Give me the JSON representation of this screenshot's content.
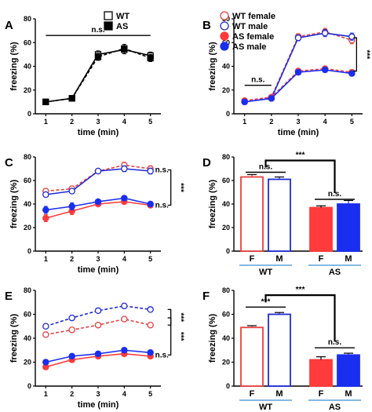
{
  "figure": {
    "colors": {
      "black": "#000000",
      "wt_red": "#e8403f",
      "wt_blue": "#1f2bd6",
      "as_red": "#ff3b3b",
      "as_blue": "#1a2ef0",
      "underline_blue": "#5aa0d8"
    }
  },
  "chart_data": [
    {
      "id": "A",
      "panel_label": "A",
      "type": "line",
      "xlabel": "time (min)",
      "ylabel": "freezing (%)",
      "x": [
        1,
        2,
        3,
        4,
        5
      ],
      "xlim": [
        0.6,
        5.4
      ],
      "ylim": [
        0,
        80
      ],
      "yticks": [
        0,
        20,
        40,
        60,
        80
      ],
      "series": [
        {
          "name": "WT",
          "marker": "square-open",
          "line": "solid",
          "color": "#000000",
          "values": [
            10,
            13,
            50,
            54,
            49
          ],
          "errors": [
            1.5,
            1.5,
            3,
            3.5,
            3
          ]
        },
        {
          "name": "AS",
          "marker": "square-filled",
          "line": "dashed",
          "color": "#000000",
          "values": [
            10,
            13,
            48,
            55,
            47
          ],
          "errors": [
            1.5,
            1.5,
            3,
            3.5,
            3
          ]
        }
      ],
      "annotations": [
        {
          "text": "n.s.",
          "kind": "bar",
          "x1": 1,
          "x2": 5,
          "y": 66
        }
      ],
      "legend": "top-right",
      "grid": false
    },
    {
      "id": "B",
      "panel_label": "B",
      "type": "line",
      "xlabel": "time (min)",
      "ylabel": "freezing (%)",
      "x": [
        1,
        2,
        3,
        4,
        5
      ],
      "xlim": [
        0.6,
        5.4
      ],
      "ylim": [
        0,
        80
      ],
      "yticks": [
        0,
        20,
        40,
        60,
        80
      ],
      "series": [
        {
          "name": "WT female",
          "marker": "circle-open",
          "line": "dashed",
          "color": "#e8403f",
          "values": [
            11,
            14,
            65,
            69,
            62
          ],
          "errors": [
            1.5,
            1.5,
            2.5,
            3,
            3
          ]
        },
        {
          "name": "WT male",
          "marker": "circle-open",
          "line": "solid",
          "color": "#1f2bd6",
          "values": [
            10,
            13,
            64,
            68,
            65
          ],
          "errors": [
            1.5,
            1.5,
            2.5,
            3,
            3
          ]
        },
        {
          "name": "AS female",
          "marker": "circle-filled",
          "line": "dashed",
          "color": "#ff3b3b",
          "values": [
            11,
            14,
            36,
            38,
            35
          ],
          "errors": [
            1.5,
            1.5,
            2,
            2,
            2
          ]
        },
        {
          "name": "AS male",
          "marker": "circle-filled",
          "line": "solid",
          "color": "#1a2ef0",
          "values": [
            10,
            13,
            35,
            37,
            34
          ],
          "errors": [
            1.5,
            1.5,
            2,
            2,
            2
          ]
        }
      ],
      "annotations": [
        {
          "text": "n.s.",
          "kind": "bar",
          "x1": 1,
          "x2": 2,
          "y": 24
        },
        {
          "text": "***",
          "kind": "bracket-right",
          "x": 5,
          "y1": 36,
          "y2": 64
        }
      ],
      "legend": "top-left",
      "grid": false
    },
    {
      "id": "C",
      "panel_label": "C",
      "type": "line",
      "xlabel": "time (min)",
      "ylabel": "freezing (%)",
      "x": [
        1,
        2,
        3,
        4,
        5
      ],
      "xlim": [
        0.6,
        5.4
      ],
      "ylim": [
        0,
        80
      ],
      "yticks": [
        0,
        20,
        40,
        60,
        80
      ],
      "series": [
        {
          "name": "WT female",
          "marker": "circle-open",
          "line": "dashed",
          "color": "#e8403f",
          "values": [
            51,
            53,
            68,
            73,
            70
          ],
          "errors": [
            2,
            2,
            2,
            2.5,
            2.5
          ]
        },
        {
          "name": "WT male",
          "marker": "circle-open",
          "line": "solid",
          "color": "#1f2bd6",
          "values": [
            48,
            51,
            68,
            70,
            68
          ],
          "errors": [
            2,
            2,
            2,
            2.5,
            2.5
          ]
        },
        {
          "name": "AS female",
          "marker": "circle-filled",
          "line": "solid",
          "color": "#ff3b3b",
          "values": [
            28,
            34,
            40,
            42,
            39
          ],
          "errors": [
            3,
            3,
            2,
            2,
            2
          ]
        },
        {
          "name": "AS male",
          "marker": "circle-filled",
          "line": "solid",
          "color": "#1a2ef0",
          "values": [
            35,
            38,
            42,
            45,
            40
          ],
          "errors": [
            3,
            3,
            2,
            2,
            2
          ]
        }
      ],
      "annotations": [
        {
          "text": "n.s.",
          "kind": "label",
          "x": 5,
          "y": 69
        },
        {
          "text": "n.s.",
          "kind": "label",
          "x": 5,
          "y": 39
        },
        {
          "text": "***",
          "kind": "bracket-right",
          "x": 5,
          "y1": 39,
          "y2": 69
        }
      ],
      "grid": false
    },
    {
      "id": "D",
      "panel_label": "D",
      "type": "bar",
      "ylabel": "freezing (%)",
      "categories": [
        "F",
        "M",
        "F",
        "M"
      ],
      "groups": [
        {
          "label": "WT"
        },
        {
          "label": "AS"
        }
      ],
      "values": [
        63,
        61,
        37,
        40
      ],
      "errors": [
        2,
        2,
        1.5,
        3
      ],
      "bar_style": [
        "open-red",
        "open-blue",
        "filled-red",
        "filled-blue"
      ],
      "ylim": [
        0,
        80
      ],
      "yticks": [
        0,
        20,
        40,
        60,
        80
      ],
      "annotations": [
        {
          "text": "n.s.",
          "kind": "bar",
          "i1": 0,
          "i2": 1,
          "y": 67
        },
        {
          "text": "n.s.",
          "kind": "bar",
          "i1": 2,
          "i2": 3,
          "y": 44
        },
        {
          "text": "***",
          "kind": "bracket-top",
          "i1": 0.5,
          "i2": 2.5,
          "y": 77
        }
      ],
      "grid": false
    },
    {
      "id": "E",
      "panel_label": "E",
      "type": "line",
      "xlabel": "time (min)",
      "ylabel": "freezing (%)",
      "x": [
        1,
        2,
        3,
        4,
        5
      ],
      "xlim": [
        0.6,
        5.4
      ],
      "ylim": [
        0,
        80
      ],
      "yticks": [
        0,
        20,
        40,
        60,
        80
      ],
      "series": [
        {
          "name": "WT female",
          "marker": "circle-open",
          "line": "dashed",
          "color": "#e8403f",
          "values": [
            43,
            47,
            51,
            56,
            51
          ],
          "errors": [
            1.5,
            1.5,
            1.5,
            1.5,
            1.5
          ]
        },
        {
          "name": "WT male",
          "marker": "circle-open",
          "line": "dashed",
          "color": "#1f2bd6",
          "values": [
            50,
            57,
            63,
            67,
            64
          ],
          "errors": [
            1.5,
            1.5,
            1.5,
            1.5,
            1.5
          ]
        },
        {
          "name": "AS female",
          "marker": "circle-filled",
          "line": "solid",
          "color": "#ff3b3b",
          "values": [
            16,
            22,
            25,
            27,
            25
          ],
          "errors": [
            2,
            2,
            2,
            2,
            2
          ]
        },
        {
          "name": "AS male",
          "marker": "circle-filled",
          "line": "solid",
          "color": "#1a2ef0",
          "values": [
            20,
            25,
            27,
            30,
            28
          ],
          "errors": [
            2,
            2,
            2,
            2,
            2
          ]
        }
      ],
      "annotations": [
        {
          "text": "***",
          "kind": "bracket-right",
          "x": 5,
          "y1": 51,
          "y2": 64
        },
        {
          "text": "n.s.",
          "kind": "label",
          "x": 5,
          "y": 26
        },
        {
          "text": "***",
          "kind": "bracket-right",
          "x": 5,
          "y1": 26,
          "y2": 57
        }
      ],
      "grid": false
    },
    {
      "id": "F",
      "panel_label": "F",
      "type": "bar",
      "ylabel": "freezing (%)",
      "categories": [
        "F",
        "M",
        "F",
        "M"
      ],
      "groups": [
        {
          "label": "WT"
        },
        {
          "label": "AS"
        }
      ],
      "values": [
        49,
        60,
        22,
        26
      ],
      "errors": [
        1.5,
        1.5,
        2.5,
        1.5
      ],
      "bar_style": [
        "open-red",
        "open-blue",
        "filled-red",
        "filled-blue"
      ],
      "ylim": [
        0,
        80
      ],
      "yticks": [
        0,
        20,
        40,
        60,
        80
      ],
      "annotations": [
        {
          "text": "***",
          "kind": "bar",
          "i1": 0,
          "i2": 1,
          "y": 66
        },
        {
          "text": "n.s.",
          "kind": "bar",
          "i1": 2,
          "i2": 3,
          "y": 32
        },
        {
          "text": "***",
          "kind": "bracket-top",
          "i1": 0.5,
          "i2": 2.5,
          "y": 76
        }
      ],
      "grid": false
    }
  ]
}
